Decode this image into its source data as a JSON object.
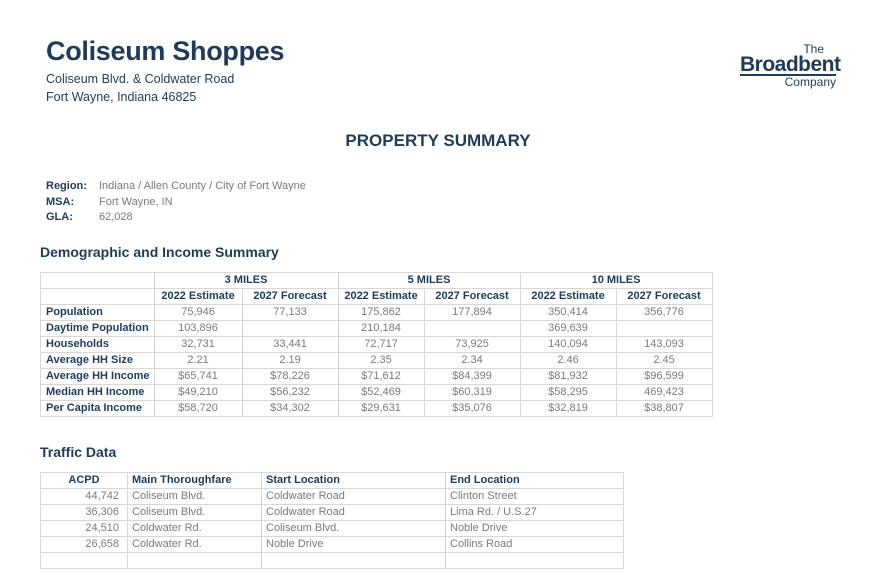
{
  "header": {
    "title": "Coliseum Shoppes",
    "address_line1": "Coliseum Blvd. & Coldwater Road",
    "address_line2": "Fort Wayne, Indiana  46825",
    "logo": {
      "line1": "The",
      "line2": "Broadbent",
      "line3": "Company"
    }
  },
  "summary_title": "PROPERTY SUMMARY",
  "meta": [
    {
      "label": "Region:",
      "value": "Indiana / Allen County / City of Fort Wayne"
    },
    {
      "label": "MSA:",
      "value": "Fort Wayne, IN"
    },
    {
      "label": "GLA:",
      "value": "62,028"
    }
  ],
  "demographics": {
    "heading": "Demographic and Income Summary",
    "radii": [
      "3 MILES",
      "5 MILES",
      "10 MILES"
    ],
    "subheaders": [
      "2022 Estimate",
      "2027 Forecast",
      "2022 Estimate",
      "2027 Forecast",
      "2022 Estimate",
      "2027 Forecast"
    ],
    "rows": [
      {
        "label": "Population",
        "values": [
          "75,946",
          "77,133",
          "175,862",
          "177,894",
          "350,414",
          "356,776"
        ]
      },
      {
        "label": "Daytime Population",
        "values": [
          "103,896",
          "",
          "210,184",
          "",
          "369,639",
          ""
        ]
      },
      {
        "label": "Households",
        "values": [
          "32,731",
          "33,441",
          "72,717",
          "73,925",
          "140,094",
          "143,093"
        ]
      },
      {
        "label": "Average HH Size",
        "values": [
          "2.21",
          "2.19",
          "2.35",
          "2.34",
          "2.46",
          "2.45"
        ]
      },
      {
        "label": "Average HH Income",
        "values": [
          "$65,741",
          "$78,226",
          "$71,612",
          "$84,399",
          "$81,932",
          "$96,599"
        ]
      },
      {
        "label": "Median HH Income",
        "values": [
          "$49,210",
          "$56,232",
          "$52,469",
          "$60,319",
          "$58,295",
          "469,423"
        ]
      },
      {
        "label": "Per Capita Income",
        "values": [
          "$58,720",
          "$34,302",
          "$29,631",
          "$35,076",
          "$32,819",
          "$38,807"
        ]
      }
    ]
  },
  "traffic": {
    "heading": "Traffic Data",
    "columns": [
      "ACPD",
      "Main Thoroughfare",
      "Start Location",
      "End Location"
    ],
    "rows": [
      [
        "44,742",
        "Coliseum Blvd.",
        "Coldwater Road",
        "Clinton Street"
      ],
      [
        "36,306",
        "Coliseum Blvd.",
        "Coldwater Road",
        "Lima Rd. / U.S.27"
      ],
      [
        "24,510",
        "Coldwater Rd.",
        "Coliseum Blvd.",
        "Noble Drive"
      ],
      [
        "26,658",
        "Coldwater Rd.",
        "Noble Drive",
        "Collins Road"
      ],
      [
        "",
        "",
        "",
        ""
      ]
    ]
  }
}
